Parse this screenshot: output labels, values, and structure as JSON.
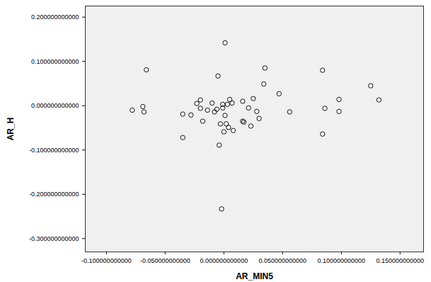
{
  "chart_data": {
    "type": "scatter",
    "x_label": "AR_MIN5",
    "y_label": "AR_H",
    "color": "#000000",
    "marker": "circle",
    "grid": false,
    "xlim": [
      -0.118,
      0.17
    ],
    "ylim": [
      -0.33,
      0.225
    ],
    "xticks": [
      {
        "value": -0.1,
        "label": "-0.100000000000"
      },
      {
        "value": -0.05,
        "label": "-0.050000000000"
      },
      {
        "value": 0,
        "label": "0.000000000000"
      },
      {
        "value": 0.05,
        "label": "0.050000000000"
      },
      {
        "value": 0.1,
        "label": "0.100000000000"
      },
      {
        "value": 0.15,
        "label": "0.150000000000"
      }
    ],
    "yticks": [
      {
        "value": -0.3,
        "label": "-0.300000000000"
      },
      {
        "value": -0.2,
        "label": "-0.200000000000"
      },
      {
        "value": -0.1,
        "label": "-0.100000000000"
      },
      {
        "value": 0,
        "label": "0.000000000000"
      },
      {
        "value": 0.1,
        "label": "0.100000000000"
      },
      {
        "value": 0.2,
        "label": "0.200000000000"
      }
    ],
    "x": [
      -0.078,
      -0.069,
      -0.068,
      -0.066,
      -0.035,
      -0.035,
      -0.028,
      -0.023,
      -0.02,
      -0.02,
      -0.018,
      -0.014,
      -0.01,
      -0.008,
      -0.006,
      -0.005,
      -0.004,
      -0.003,
      -0.002,
      -0.001,
      -0.001,
      0.0,
      0.001,
      0.001,
      0.002,
      0.003,
      0.004,
      0.005,
      0.007,
      0.008,
      0.016,
      0.017,
      0.016,
      0.021,
      0.023,
      0.025,
      0.028,
      0.03,
      0.034,
      0.035,
      0.047,
      0.056,
      0.084,
      0.084,
      0.086,
      0.098,
      0.098,
      0.125,
      0.132
    ],
    "values": [
      -0.01,
      -0.002,
      -0.014,
      0.081,
      -0.072,
      -0.019,
      -0.021,
      0.005,
      0.013,
      -0.006,
      -0.035,
      -0.01,
      0.006,
      -0.014,
      -0.008,
      0.067,
      -0.089,
      -0.041,
      -0.233,
      0.003,
      -0.005,
      -0.059,
      0.142,
      -0.022,
      -0.041,
      0.003,
      -0.049,
      0.014,
      0.006,
      -0.056,
      -0.035,
      -0.037,
      0.01,
      -0.005,
      -0.046,
      0.016,
      -0.013,
      -0.029,
      0.049,
      0.085,
      0.027,
      -0.014,
      -0.064,
      0.08,
      -0.006,
      0.014,
      -0.013,
      0.045,
      0.013
    ]
  }
}
